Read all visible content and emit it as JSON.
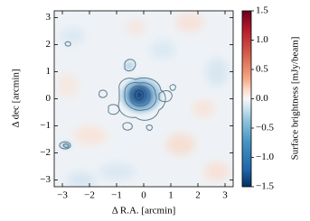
{
  "chart_data": {
    "type": "image",
    "xlabel": "Δ R.A. [arcmin]",
    "ylabel": "Δ dec [arcmin]",
    "xlim": [
      -3.3,
      3.3
    ],
    "ylim": [
      -3.25,
      3.25
    ],
    "xticks": [
      {
        "value": -3,
        "label": "−3"
      },
      {
        "value": -2,
        "label": "−2"
      },
      {
        "value": -1,
        "label": "−1"
      },
      0,
      1,
      2,
      3
    ],
    "yticks": [
      {
        "value": -3,
        "label": "−3"
      },
      {
        "value": -2,
        "label": "−2"
      },
      {
        "value": -1,
        "label": "−1"
      },
      0,
      1,
      2,
      3
    ],
    "colorbar": {
      "label": "Surface brightness [mJy/beam]",
      "colormap": "RdBu_r",
      "lim": [
        -1.5,
        1.5
      ],
      "ticks": [
        {
          "value": -1.5,
          "label": "−1.5"
        },
        {
          "value": -1,
          "label": "−1.0"
        },
        {
          "value": -0.5,
          "label": "−0.5"
        },
        {
          "value": 0,
          "label": "0.0"
        },
        0.5,
        {
          "value": 1,
          "label": "1.0"
        },
        1.5
      ]
    }
  }
}
